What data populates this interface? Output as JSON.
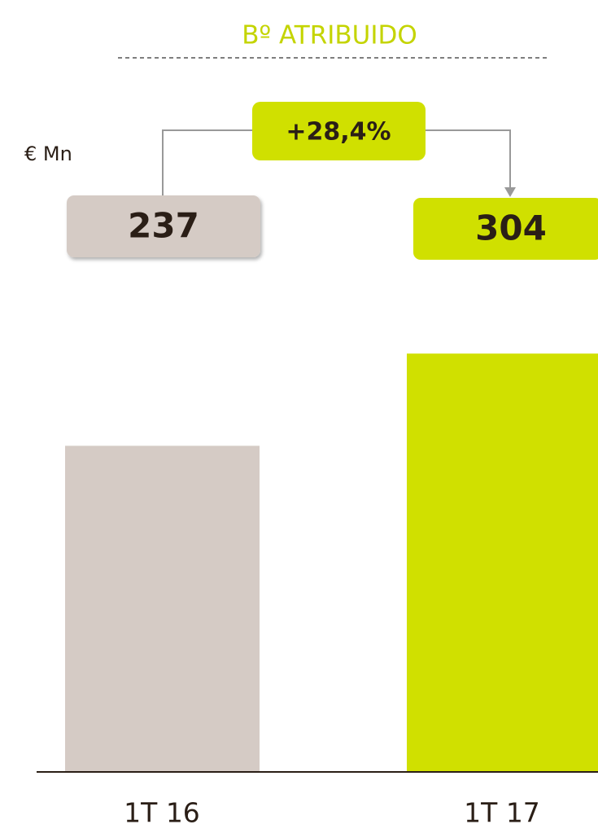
{
  "chart_data": {
    "type": "bar",
    "title": "Bº ATRIBUIDO",
    "unit_label": "€ Mn",
    "categories": [
      "1T 16",
      "1T 17"
    ],
    "values": [
      237,
      304
    ],
    "colors": [
      "#d5cbc5",
      "#d0e000"
    ],
    "title_color": "#c4d400",
    "annotation": "+28,4%"
  }
}
